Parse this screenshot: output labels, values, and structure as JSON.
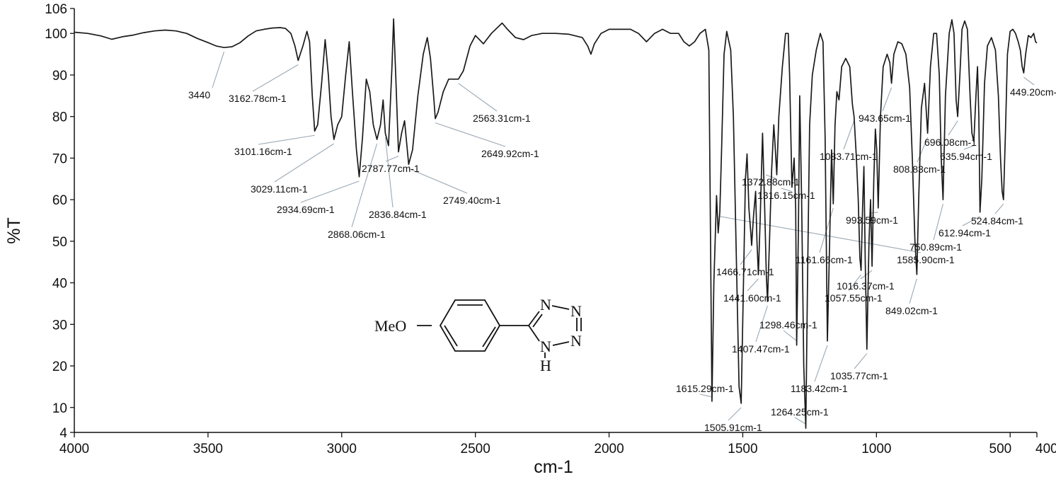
{
  "chart_data": {
    "type": "line",
    "title": "",
    "xlabel": "cm-1",
    "ylabel": "%T",
    "xlim": [
      4000,
      400
    ],
    "ylim": [
      4,
      106
    ],
    "x_ticks": [
      "4000",
      "3500",
      "3000",
      "2500",
      "2000",
      "1500",
      "1000",
      "500",
      "400"
    ],
    "y_ticks": [
      "4",
      "10",
      "20",
      "30",
      "40",
      "50",
      "60",
      "70",
      "80",
      "90",
      "100",
      "106"
    ],
    "series": [
      {
        "points": [
          [
            4000,
            100.3
          ],
          [
            3950,
            100
          ],
          [
            3900,
            99.4
          ],
          [
            3860,
            98.6
          ],
          [
            3820,
            99.2
          ],
          [
            3780,
            99.6
          ],
          [
            3740,
            100.2
          ],
          [
            3700,
            100.6
          ],
          [
            3660,
            100.8
          ],
          [
            3620,
            100.6
          ],
          [
            3580,
            100
          ],
          [
            3540,
            98.8
          ],
          [
            3500,
            97.8
          ],
          [
            3470,
            97
          ],
          [
            3440,
            96.6
          ],
          [
            3410,
            96.8
          ],
          [
            3380,
            97.8
          ],
          [
            3350,
            99.4
          ],
          [
            3320,
            100.6
          ],
          [
            3290,
            101
          ],
          [
            3260,
            101.3
          ],
          [
            3230,
            101.4
          ],
          [
            3210,
            101.2
          ],
          [
            3190,
            100
          ],
          [
            3175,
            97
          ],
          [
            3162.78,
            93.5
          ],
          [
            3145,
            97
          ],
          [
            3130,
            100.5
          ],
          [
            3120,
            98
          ],
          [
            3110,
            85
          ],
          [
            3101.16,
            76.5
          ],
          [
            3090,
            78
          ],
          [
            3075,
            88
          ],
          [
            3062,
            98.5
          ],
          [
            3050,
            90
          ],
          [
            3040,
            80
          ],
          [
            3029.11,
            74.5
          ],
          [
            3015,
            78
          ],
          [
            3000,
            80
          ],
          [
            2985,
            90
          ],
          [
            2972,
            98
          ],
          [
            2960,
            86
          ],
          [
            2945,
            72
          ],
          [
            2934.69,
            65.5
          ],
          [
            2922,
            75
          ],
          [
            2908,
            89
          ],
          [
            2895,
            86
          ],
          [
            2882,
            78
          ],
          [
            2868.06,
            74.5
          ],
          [
            2855,
            78
          ],
          [
            2845,
            84
          ],
          [
            2836.84,
            76
          ],
          [
            2825,
            73
          ],
          [
            2812,
            92
          ],
          [
            2806,
            103.5
          ],
          [
            2798,
            90
          ],
          [
            2787.77,
            71.5
          ],
          [
            2776,
            76
          ],
          [
            2765,
            79
          ],
          [
            2749.4,
            68.5
          ],
          [
            2735,
            72
          ],
          [
            2715,
            85
          ],
          [
            2695,
            95
          ],
          [
            2680,
            99
          ],
          [
            2668,
            94
          ],
          [
            2655,
            84
          ],
          [
            2649.92,
            79.5
          ],
          [
            2640,
            81
          ],
          [
            2620,
            86
          ],
          [
            2600,
            89
          ],
          [
            2580,
            89
          ],
          [
            2563.31,
            89
          ],
          [
            2545,
            91
          ],
          [
            2520,
            97
          ],
          [
            2500,
            99.5
          ],
          [
            2470,
            97.5
          ],
          [
            2440,
            100
          ],
          [
            2400,
            102.5
          ],
          [
            2380,
            101
          ],
          [
            2350,
            99
          ],
          [
            2320,
            98.5
          ],
          [
            2290,
            99.5
          ],
          [
            2250,
            100
          ],
          [
            2200,
            100
          ],
          [
            2150,
            99.8
          ],
          [
            2100,
            99
          ],
          [
            2080,
            97
          ],
          [
            2068,
            95
          ],
          [
            2055,
            97.5
          ],
          [
            2030,
            100
          ],
          [
            2000,
            101
          ],
          [
            1960,
            101
          ],
          [
            1920,
            101
          ],
          [
            1890,
            100
          ],
          [
            1860,
            98
          ],
          [
            1830,
            100
          ],
          [
            1800,
            101
          ],
          [
            1770,
            100
          ],
          [
            1740,
            100
          ],
          [
            1720,
            98
          ],
          [
            1700,
            97
          ],
          [
            1680,
            98
          ],
          [
            1660,
            100
          ],
          [
            1640,
            101
          ],
          [
            1627,
            96
          ],
          [
            1622,
            60
          ],
          [
            1615.29,
            11.5
          ],
          [
            1608,
            40
          ],
          [
            1598,
            61
          ],
          [
            1592,
            52
          ],
          [
            1585.9,
            57
          ],
          [
            1580,
            70
          ],
          [
            1570,
            95
          ],
          [
            1560,
            100.5
          ],
          [
            1545,
            96
          ],
          [
            1535,
            80
          ],
          [
            1522,
            40
          ],
          [
            1514,
            15
          ],
          [
            1505.91,
            11
          ],
          [
            1496,
            45
          ],
          [
            1490,
            65
          ],
          [
            1484,
            71
          ],
          [
            1477,
            58
          ],
          [
            1470,
            52
          ],
          [
            1466.71,
            49
          ],
          [
            1460,
            56
          ],
          [
            1452,
            62
          ],
          [
            1447,
            50
          ],
          [
            1441.6,
            42
          ],
          [
            1435,
            55
          ],
          [
            1426,
            76
          ],
          [
            1418,
            58
          ],
          [
            1412,
            42
          ],
          [
            1407.47,
            35.5
          ],
          [
            1400,
            50
          ],
          [
            1392,
            67
          ],
          [
            1384,
            78
          ],
          [
            1378,
            72
          ],
          [
            1372.88,
            66
          ],
          [
            1365,
            80
          ],
          [
            1352,
            92
          ],
          [
            1340,
            100
          ],
          [
            1330,
            100
          ],
          [
            1325,
            90
          ],
          [
            1316.15,
            63
          ],
          [
            1308,
            70
          ],
          [
            1302,
            58
          ],
          [
            1298.46,
            25
          ],
          [
            1292,
            52
          ],
          [
            1287,
            85
          ],
          [
            1280,
            60
          ],
          [
            1272,
            20
          ],
          [
            1264.25,
            5
          ],
          [
            1258,
            40
          ],
          [
            1250,
            78
          ],
          [
            1240,
            90
          ],
          [
            1225,
            96
          ],
          [
            1210,
            100
          ],
          [
            1200,
            98
          ],
          [
            1192,
            75
          ],
          [
            1183.42,
            26
          ],
          [
            1175,
            50
          ],
          [
            1168,
            72
          ],
          [
            1161.66,
            59
          ],
          [
            1155,
            78
          ],
          [
            1148,
            86
          ],
          [
            1140,
            84
          ],
          [
            1130,
            92
          ],
          [
            1115,
            94
          ],
          [
            1100,
            92
          ],
          [
            1090,
            83
          ],
          [
            1083.71,
            80
          ],
          [
            1075,
            70
          ],
          [
            1068,
            60
          ],
          [
            1062,
            46
          ],
          [
            1057.55,
            43
          ],
          [
            1052,
            58
          ],
          [
            1047,
            68
          ],
          [
            1042,
            45
          ],
          [
            1035.77,
            24
          ],
          [
            1028,
            50
          ],
          [
            1022,
            60
          ],
          [
            1016.37,
            44
          ],
          [
            1010,
            65
          ],
          [
            1004,
            77
          ],
          [
            999,
            72
          ],
          [
            993.59,
            58
          ],
          [
            985,
            80
          ],
          [
            975,
            92
          ],
          [
            960,
            95
          ],
          [
            950,
            93
          ],
          [
            943.65,
            88
          ],
          [
            935,
            95
          ],
          [
            920,
            98
          ],
          [
            905,
            97.5
          ],
          [
            890,
            95
          ],
          [
            876,
            87
          ],
          [
            866,
            70
          ],
          [
            856,
            50
          ],
          [
            849.02,
            42
          ],
          [
            842,
            60
          ],
          [
            832,
            82
          ],
          [
            820,
            88
          ],
          [
            808.83,
            76
          ],
          [
            798,
            92
          ],
          [
            786,
            100
          ],
          [
            775,
            100
          ],
          [
            765,
            90
          ],
          [
            758,
            70
          ],
          [
            750.89,
            60
          ],
          [
            742,
            85
          ],
          [
            728,
            100
          ],
          [
            718,
            103.3
          ],
          [
            710,
            100
          ],
          [
            702,
            84
          ],
          [
            696.08,
            80
          ],
          [
            688,
            90
          ],
          [
            680,
            101
          ],
          [
            670,
            103
          ],
          [
            660,
            101
          ],
          [
            650,
            85
          ],
          [
            643,
            76
          ],
          [
            635.94,
            74
          ],
          [
            628,
            85
          ],
          [
            622,
            92
          ],
          [
            617,
            80
          ],
          [
            612.94,
            57
          ],
          [
            606,
            65
          ],
          [
            596,
            88
          ],
          [
            585,
            97
          ],
          [
            570,
            99
          ],
          [
            555,
            96
          ],
          [
            544,
            85
          ],
          [
            536,
            70
          ],
          [
            530,
            62
          ],
          [
            524.84,
            60
          ],
          [
            518,
            75
          ],
          [
            510,
            95
          ],
          [
            500,
            100.5
          ],
          [
            490,
            101
          ],
          [
            480,
            100
          ],
          [
            470,
            98
          ],
          [
            462,
            96
          ],
          [
            455,
            92
          ],
          [
            449.2,
            90.5
          ],
          [
            442,
            95
          ],
          [
            432,
            99.5
          ],
          [
            422,
            99
          ],
          [
            412,
            100
          ],
          [
            405,
            98
          ],
          [
            400,
            97.7
          ]
        ]
      }
    ],
    "annotations": [
      {
        "label": "3440",
        "x": 3440
      },
      {
        "label": "3162.78cm-1",
        "x": 3162.78
      },
      {
        "label": "3101.16cm-1",
        "x": 3101.16
      },
      {
        "label": "3029.11cm-1",
        "x": 3029.11
      },
      {
        "label": "2934.69cm-1",
        "x": 2934.69
      },
      {
        "label": "2868.06cm-1",
        "x": 2868.06
      },
      {
        "label": "2836.84cm-1",
        "x": 2836.84
      },
      {
        "label": "2787.77cm-1",
        "x": 2787.77
      },
      {
        "label": "2749.40cm-1",
        "x": 2749.4
      },
      {
        "label": "2649.92cm-1",
        "x": 2649.92
      },
      {
        "label": "2563.31cm-1",
        "x": 2563.31
      },
      {
        "label": "1615.29cm-1",
        "x": 1615.29
      },
      {
        "label": "1585.90cm-1",
        "x": 1585.9
      },
      {
        "label": "1505.91cm-1",
        "x": 1505.91
      },
      {
        "label": "1466.71cm-1",
        "x": 1466.71
      },
      {
        "label": "1441.60cm-1",
        "x": 1441.6
      },
      {
        "label": "1407.47cm-1",
        "x": 1407.47
      },
      {
        "label": "1372.88cm-1",
        "x": 1372.88
      },
      {
        "label": "1316.15cm-1",
        "x": 1316.15
      },
      {
        "label": "1298.46cm-1",
        "x": 1298.46
      },
      {
        "label": "1264.25cm-1",
        "x": 1264.25
      },
      {
        "label": "1183.42cm-1",
        "x": 1183.42
      },
      {
        "label": "1161.66cm-1",
        "x": 1161.66
      },
      {
        "label": "1083.71cm-1",
        "x": 1083.71
      },
      {
        "label": "1057.55cm-1",
        "x": 1057.55
      },
      {
        "label": "1035.77cm-1",
        "x": 1035.77
      },
      {
        "label": "1016.37cm-1",
        "x": 1016.37
      },
      {
        "label": "993.59cm-1",
        "x": 993.59
      },
      {
        "label": "943.65cm-1",
        "x": 943.65
      },
      {
        "label": "849.02cm-1",
        "x": 849.02
      },
      {
        "label": "808.83cm-1",
        "x": 808.83
      },
      {
        "label": "750.89cm-1",
        "x": 750.89
      },
      {
        "label": "696.08cm-1",
        "x": 696.08
      },
      {
        "label": "635.94cm-1",
        "x": 635.94
      },
      {
        "label": "612.94cm-1",
        "x": 612.94
      },
      {
        "label": "524.84cm-1",
        "x": 524.84
      },
      {
        "label": "449.20cm-1",
        "x": 449.2
      }
    ],
    "grid": false,
    "line_color": "#1a1a1a",
    "leader_color": "#9aa8b4"
  },
  "structure": {
    "substituent": "MeO",
    "n1": "N",
    "n2": "N",
    "n3": "N",
    "n4": "N",
    "nh": "N",
    "h": "H"
  }
}
